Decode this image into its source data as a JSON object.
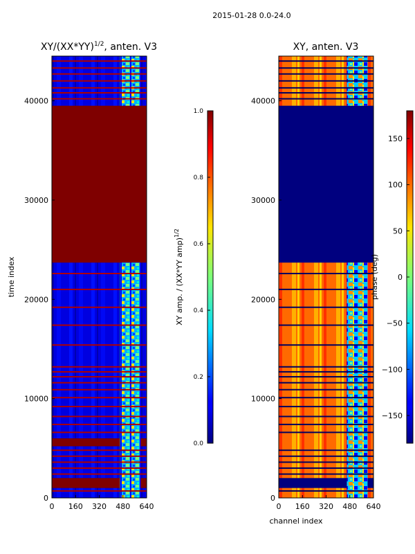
{
  "figure": {
    "suptitle": "2015-01-28 0.0-24.0",
    "xlabel_shared": "channel index"
  },
  "colors": {
    "jet_low": "#00007f",
    "jet_mid": "#7cff79",
    "jet_high": "#7f0000"
  },
  "chart_data": [
    {
      "type": "heatmap",
      "title_main": "XY/(XX*YY)",
      "title_exp": "1/2",
      "title_suffix": ", anten. V3",
      "xlabel": "",
      "ylabel": "time index",
      "xlim": [
        0,
        640
      ],
      "ylim": [
        0,
        44500
      ],
      "xticks": [
        0,
        160,
        320,
        480,
        640
      ],
      "yticks": [
        0,
        10000,
        20000,
        30000,
        40000
      ],
      "colormap": "jet",
      "colorbar": {
        "label_main": "XY amp. / (XX*YY amp)",
        "label_exp": "1/2",
        "range": [
          0.0,
          1.0
        ],
        "ticks": [
          "0.0",
          "0.2",
          "0.4",
          "0.6",
          "0.8",
          "1.0"
        ]
      },
      "saturated_time_ranges": [
        [
          1000,
          2000
        ],
        [
          5200,
          6000
        ],
        [
          23700,
          39500
        ]
      ],
      "background_value": 0.1,
      "high_channel_band": [
        460,
        600
      ]
    },
    {
      "type": "heatmap",
      "title_main": "XY, anten. V3",
      "xlabel": "channel index",
      "ylabel": "",
      "xlim": [
        0,
        640
      ],
      "ylim": [
        0,
        44500
      ],
      "xticks": [
        0,
        160,
        320,
        480,
        640
      ],
      "yticks": [
        0,
        10000,
        20000,
        30000,
        40000
      ],
      "colormap": "jet",
      "colorbar": {
        "label": "phase (deg)",
        "range": [
          -180,
          180
        ],
        "ticks": [
          "150",
          "100",
          "50",
          "0",
          "−50",
          "−100",
          "−150"
        ],
        "tick_values": [
          150,
          100,
          50,
          0,
          -50,
          -100,
          -150
        ]
      },
      "blank_time_ranges": [
        [
          1000,
          2000
        ],
        [
          23700,
          39500
        ]
      ],
      "dominant_phase_deg": 120
    }
  ]
}
